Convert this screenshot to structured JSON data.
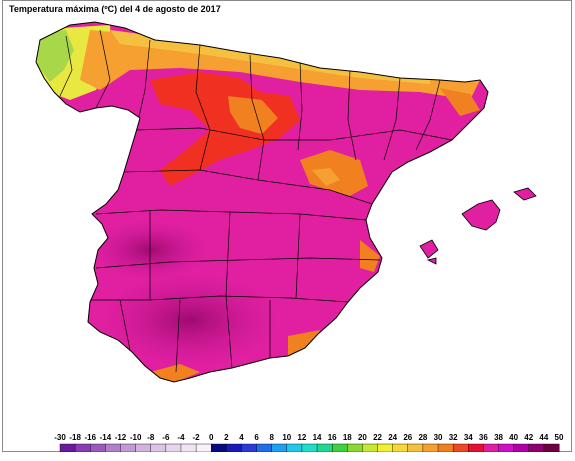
{
  "title": "Temperatura máxima (ºC) del 4 de agosto de 2017",
  "legend": {
    "ticks": [
      "-30",
      "-18",
      "-16",
      "-14",
      "-12",
      "-10",
      "-8",
      "-6",
      "-4",
      "-2",
      "0",
      "2",
      "4",
      "6",
      "8",
      "10",
      "12",
      "14",
      "16",
      "18",
      "20",
      "22",
      "24",
      "26",
      "28",
      "30",
      "32",
      "34",
      "36",
      "38",
      "40",
      "42",
      "44",
      "50"
    ],
    "colors": [
      "#6a1a9a",
      "#8a3cb0",
      "#9c5abf",
      "#b27fcc",
      "#c49ad6",
      "#d2b2df",
      "#dcc4e6",
      "#e6d5ec",
      "#efe5f2",
      "#f7f1f8",
      "#0a0a80",
      "#1a1ab8",
      "#2b3bd8",
      "#1f6fe8",
      "#1fa0f0",
      "#22c8e8",
      "#1ee0c8",
      "#20d890",
      "#40d040",
      "#8ad830",
      "#c8e830",
      "#f0f030",
      "#f8d838",
      "#f5c040",
      "#f5a030",
      "#f08020",
      "#f04820",
      "#e81030",
      "#e020a0",
      "#d010c8",
      "#b000a8",
      "#900070",
      "#700040"
    ],
    "units": "ºC"
  },
  "map": {
    "region": "España",
    "colors": {
      "dominant": "#e020a0",
      "hottest": "#b0107a",
      "hot": "#f03020",
      "warm": "#f08020",
      "mild": "#f5c040",
      "cool": "#e8e840",
      "coast": "#88d040",
      "sea": "#ffffff",
      "border": "#000000"
    }
  }
}
